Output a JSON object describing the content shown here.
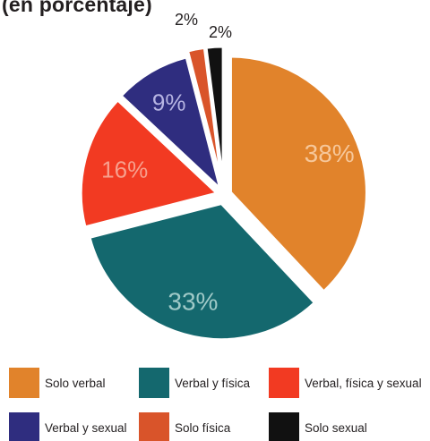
{
  "chart_data": {
    "type": "pie",
    "title": "(en porcentaje)",
    "categories": [
      "Solo verbal",
      "Verbal y física",
      "Verbal, física y sexual",
      "Verbal y sexual",
      "Solo física",
      "Solo sexual"
    ],
    "values": [
      38,
      33,
      16,
      9,
      2,
      2
    ],
    "data_labels": [
      "38%",
      "33%",
      "16%",
      "9%",
      "2%",
      "2%"
    ],
    "colors": [
      "#E1832B",
      "#14686E",
      "#F23A22",
      "#2F2D7F",
      "#D9542A",
      "#111111"
    ],
    "label_colors": [
      "#F6C79A",
      "#9FC9C7",
      "#F7A08E",
      "#B7B5E3",
      "#231F20",
      "#231F20"
    ],
    "legend": {
      "placement": "bottom",
      "items": [
        {
          "label": "Solo verbal",
          "color": "#E1832B"
        },
        {
          "label": "Verbal y física",
          "color": "#14686E"
        },
        {
          "label": "Verbal, física y sexual",
          "color": "#F23A22"
        },
        {
          "label": "Verbal y sexual",
          "color": "#2F2D7F"
        },
        {
          "label": "Solo física",
          "color": "#D9542A"
        },
        {
          "label": "Solo sexual",
          "color": "#111111"
        }
      ]
    }
  }
}
